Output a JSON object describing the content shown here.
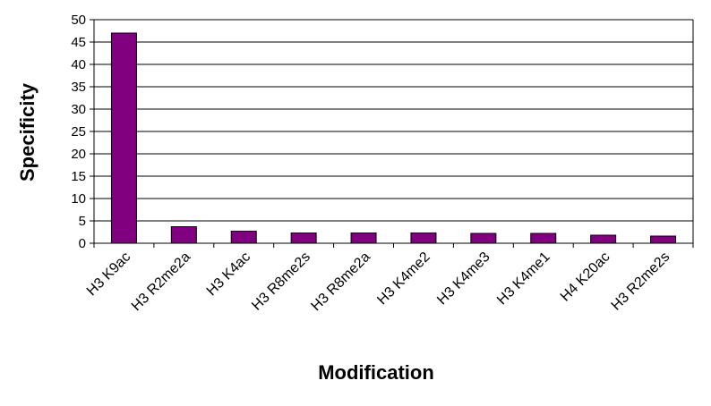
{
  "chart_data": {
    "type": "bar",
    "title": "",
    "xlabel": "Modification",
    "ylabel": "Specificity",
    "categories": [
      "H3 K9ac",
      "H3 R2me2a",
      "H3 K4ac",
      "H3 R8me2s",
      "H3 R8me2a",
      "H3 K4me2",
      "H3 K4me3",
      "H3 K4me1",
      "H4 K20ac",
      "H3 R2me2s"
    ],
    "values": [
      47,
      3.7,
      2.7,
      2.3,
      2.3,
      2.3,
      2.2,
      2.2,
      1.8,
      1.6
    ],
    "ylim": [
      0,
      50
    ],
    "yticks": [
      0,
      5,
      10,
      15,
      20,
      25,
      30,
      35,
      40,
      45,
      50
    ],
    "grid": true,
    "legend": "none",
    "bar_color": "#800080",
    "grid_color": "#000000"
  }
}
